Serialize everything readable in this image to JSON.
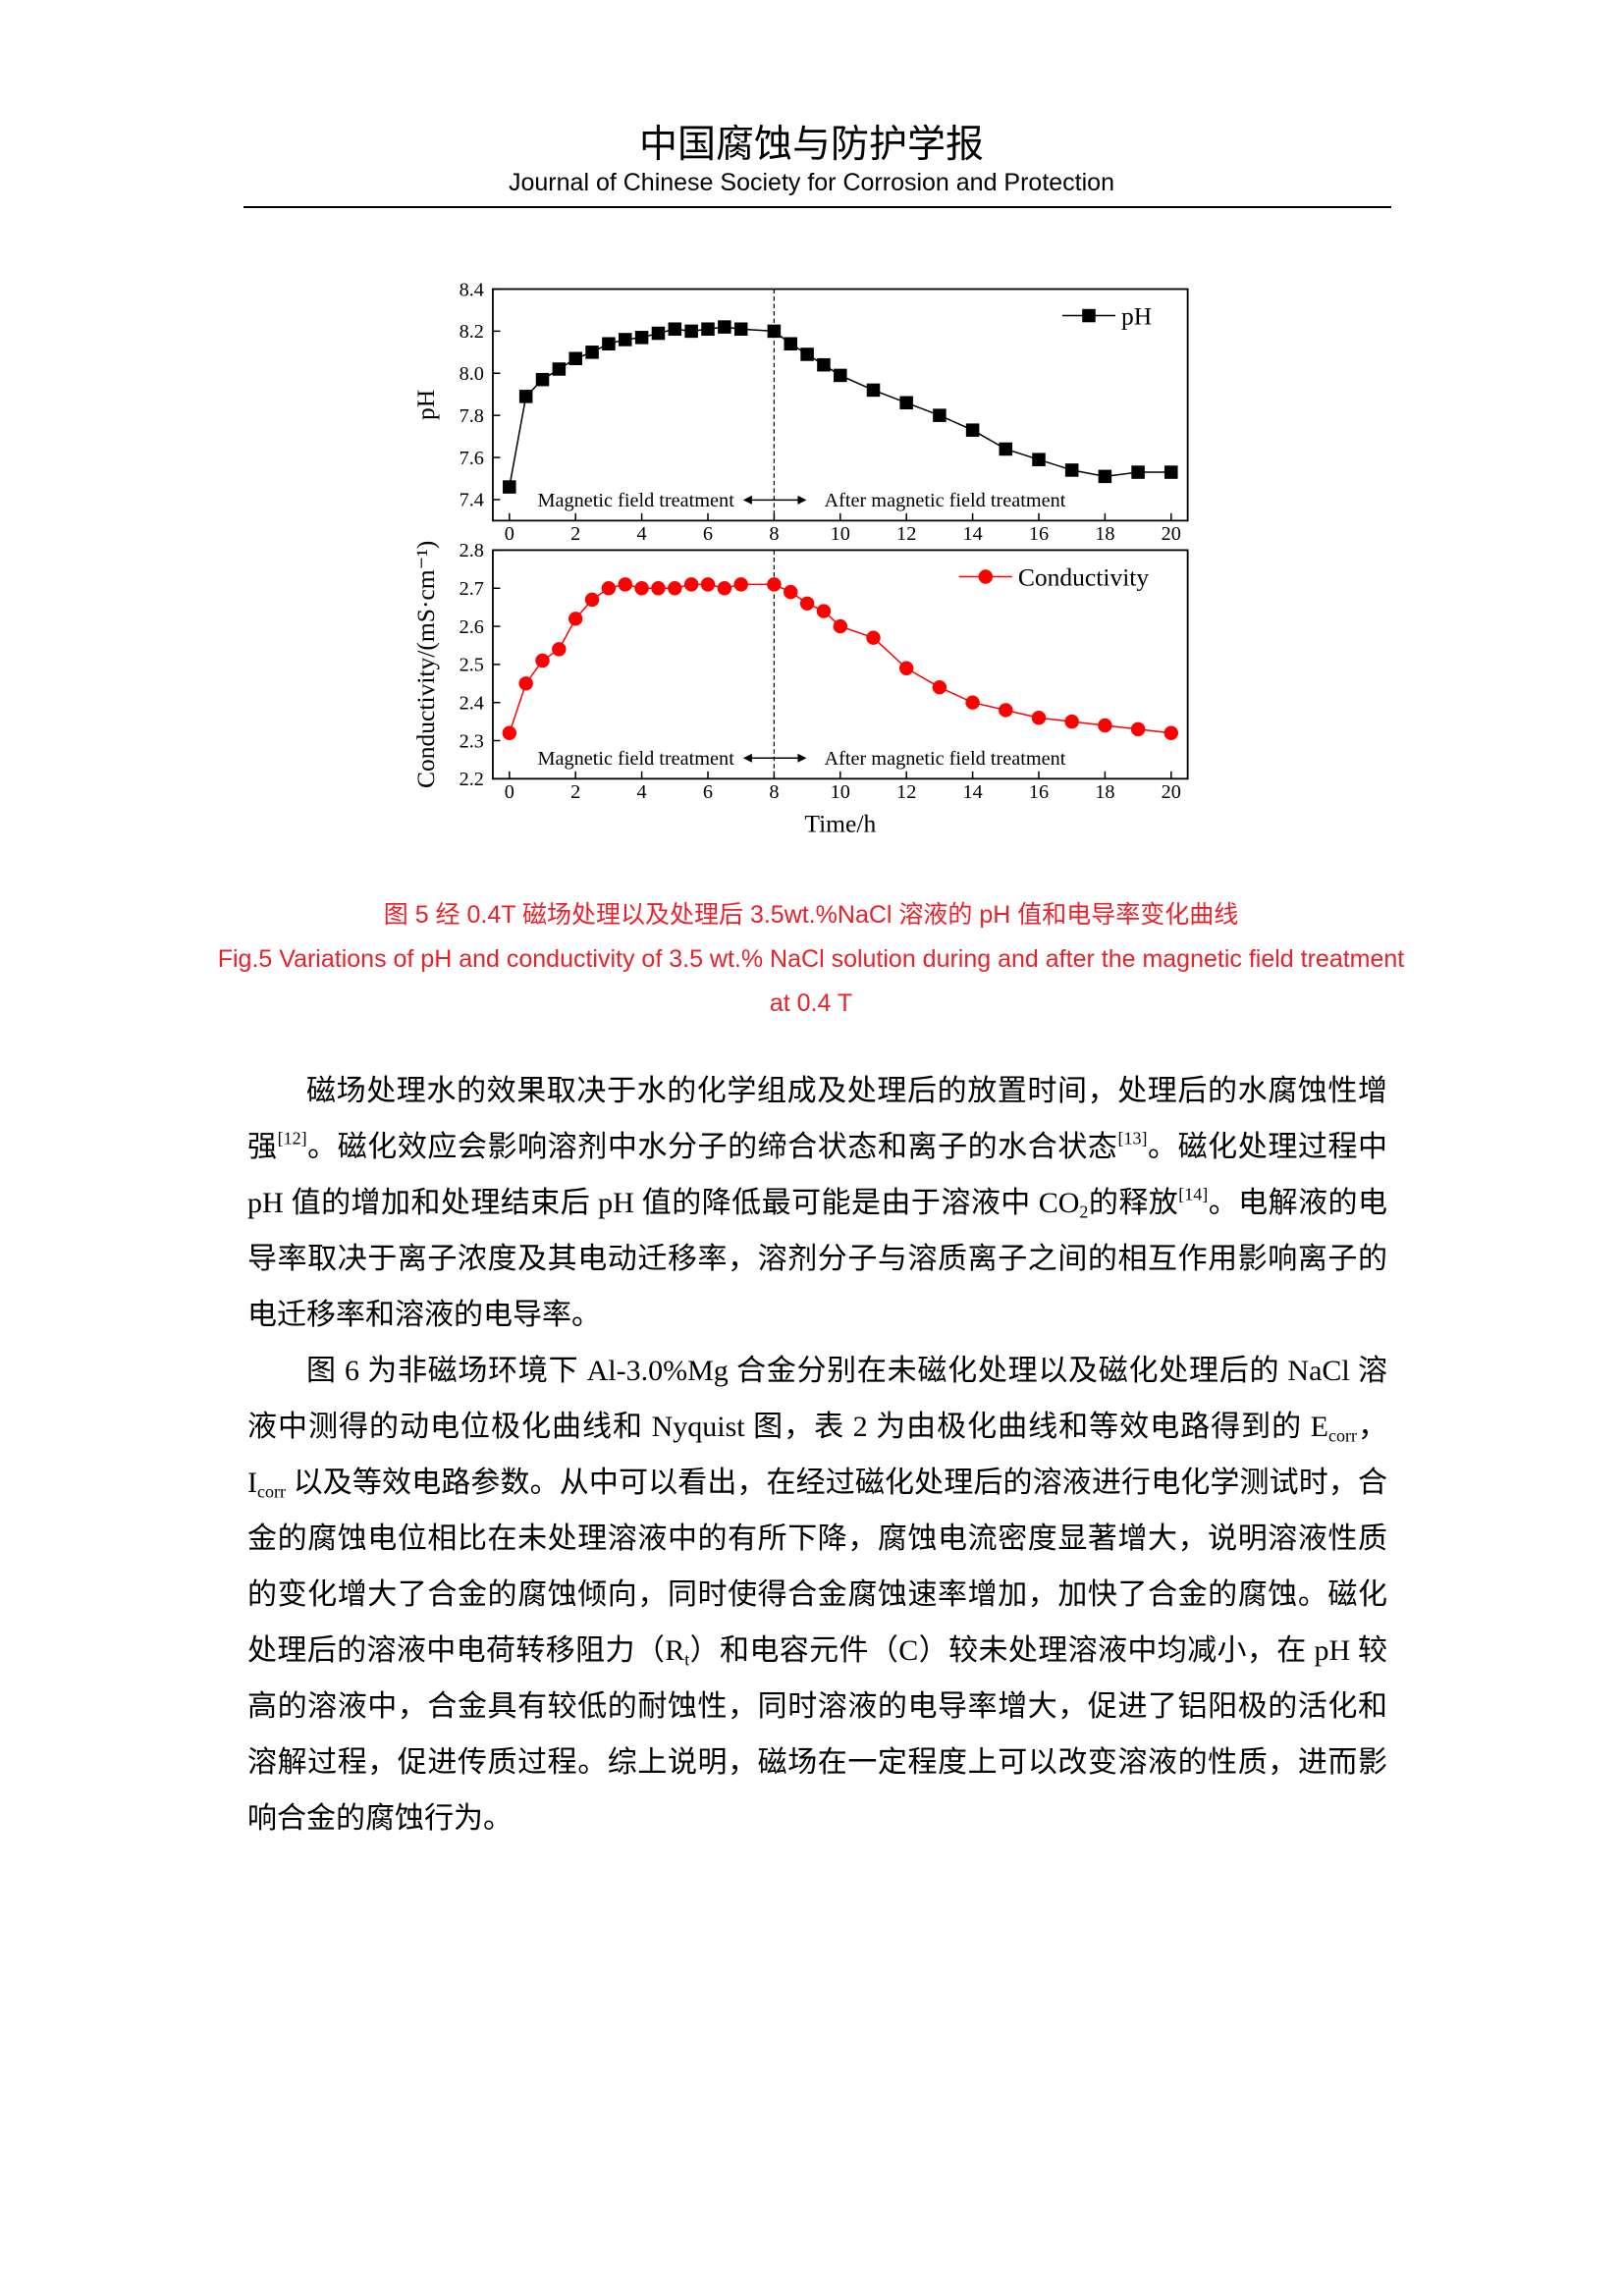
{
  "header": {
    "title": "中国腐蚀与防护学报",
    "subtitle": "Journal of Chinese Society for Corrosion and Protection"
  },
  "chart_data": [
    {
      "type": "line",
      "legend": "upper right",
      "grid": false,
      "divider_x": 8,
      "ylabel": "pH",
      "annotations": [
        "Magnetic field treatment",
        "After magnetic field treatment"
      ],
      "x": [
        0,
        0.5,
        1,
        1.5,
        2,
        2.5,
        3,
        3.5,
        4,
        4.5,
        5,
        5.5,
        6,
        6.5,
        7,
        8,
        8.5,
        9,
        9.5,
        10,
        11,
        12,
        13,
        14,
        15,
        16,
        17,
        18,
        19,
        20
      ],
      "series": [
        {
          "name": "pH",
          "color": "#000000",
          "marker": "square",
          "values": [
            7.46,
            7.89,
            7.97,
            8.02,
            8.07,
            8.1,
            8.14,
            8.16,
            8.17,
            8.19,
            8.21,
            8.2,
            8.21,
            8.22,
            8.21,
            8.2,
            8.14,
            8.09,
            8.04,
            7.99,
            7.92,
            7.86,
            7.8,
            7.73,
            7.64,
            7.59,
            7.54,
            7.51,
            7.53,
            7.53
          ]
        }
      ],
      "xlim": [
        -0.5,
        20.5
      ],
      "xticks": [
        0,
        2,
        4,
        6,
        8,
        10,
        12,
        14,
        16,
        18,
        20
      ],
      "ylim": [
        7.3,
        8.4
      ],
      "yticks": [
        7.4,
        7.6,
        7.8,
        {
          "value": 8,
          "label": "8.0"
        },
        8.2,
        8.4
      ]
    },
    {
      "type": "line",
      "legend": "upper right",
      "grid": false,
      "divider_x": 8,
      "ylabel": "Conductivity/(mS·cm⁻¹)",
      "xlabel": "Time/h",
      "annotations": [
        "Magnetic field treatment",
        "After magnetic field treatment"
      ],
      "x": [
        0,
        0.5,
        1,
        1.5,
        2,
        2.5,
        3,
        3.5,
        4,
        4.5,
        5,
        5.5,
        6,
        6.5,
        7,
        8,
        8.5,
        9,
        9.5,
        10,
        11,
        12,
        13,
        14,
        15,
        16,
        17,
        18,
        19,
        20
      ],
      "series": [
        {
          "name": "Conductivity",
          "color": "#ff0000",
          "marker": "circle",
          "values": [
            2.32,
            2.45,
            2.51,
            2.54,
            2.62,
            2.67,
            2.7,
            2.71,
            2.7,
            2.7,
            2.7,
            2.71,
            2.71,
            2.7,
            2.71,
            2.71,
            2.69,
            2.66,
            2.64,
            2.6,
            2.57,
            2.49,
            2.44,
            2.4,
            2.38,
            2.36,
            2.35,
            2.34,
            2.33,
            2.32
          ]
        }
      ],
      "xlim": [
        -0.5,
        20.5
      ],
      "xticks": [
        0,
        2,
        4,
        6,
        8,
        10,
        12,
        14,
        16,
        18,
        20
      ],
      "ylim": [
        2.2,
        2.8
      ],
      "yticks": [
        2.2,
        2.3,
        2.4,
        2.5,
        2.6,
        2.7,
        2.8
      ]
    }
  ],
  "caption": {
    "zh": "图 5  经 0.4T 磁场处理以及处理后 3.5wt.%NaCl 溶液的 pH 值和电导率变化曲线",
    "en": "Fig.5 Variations of pH and conductivity of 3.5 wt.% NaCl solution during and after the magnetic field treatment at 0.4 T"
  },
  "paragraphs": [
    [
      "磁场处理水的效果取决于水的化学组成及处理后的放置时间，处理后的水腐蚀性增强",
      "[12]",
      "。磁化效应会影响溶剂中水分子的缔合状态和离子的水合状态",
      "[13]",
      "。磁化处理过程中 pH 值的增加和处理结束后 pH 值的降低最可能是由于溶液中 CO",
      "2",
      "的释放",
      "[14]",
      "。电解液的电导率取决于离子浓度及其电动迁移率，溶剂分子与溶质离子之间的相互作用影响离子的电迁移率和溶液的电导率。"
    ],
    [
      "图 6 为非磁场环境下 Al-3.0%Mg 合金分别在未磁化处理以及磁化处理后的 NaCl 溶液中测得的动电位极化曲线和 Nyquist 图，表 2 为由极化曲线和等效电路得到的 E",
      "corr",
      "，I",
      "corr",
      " 以及等效电路参数。从中可以看出，在经过磁化处理后的溶液进行电化学测试时，合金的腐蚀电位相比在未处理溶液中的有所下降，腐蚀电流密度显著增大，说明溶液性质的变化增大了合金的腐蚀倾向，同时使得合金腐蚀速率增加，加快了合金的腐蚀。磁化处理后的溶液中电荷转移阻力（R",
      "t",
      "）和电容元件（C）较未处理溶液中均减小，在 pH 较高的溶液中，合金具有较低的耐蚀性，同时溶液的电导率增大，促进了铝阳极的活化和溶解过程，促进传质过程。综上说明，磁场在一定程度上可以改变溶液的性质，进而影响合金的腐蚀行为。"
    ]
  ]
}
